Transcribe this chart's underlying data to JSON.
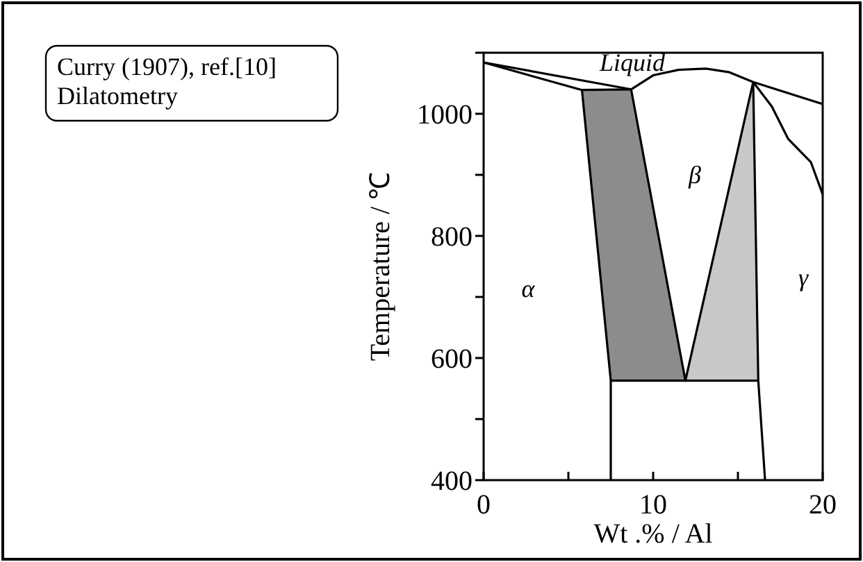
{
  "chart_data": {
    "type": "line",
    "xlabel": "Wt .% /  Al",
    "ylabel": "Temperature  / ℃",
    "xlim": [
      0,
      20
    ],
    "ylim": [
      400,
      1100
    ],
    "xticks": [
      0,
      {
        "value": 5,
        "label": null
      },
      10,
      {
        "value": 15,
        "label": null
      },
      20
    ],
    "yticks": [
      400,
      {
        "value": 500,
        "label": null
      },
      600,
      {
        "value": 700,
        "label": null
      },
      800,
      {
        "value": 900,
        "label": null
      },
      1000,
      {
        "value": 1100,
        "label": null
      }
    ],
    "grid": false,
    "marker": "none",
    "line_style": "solid",
    "series": [
      {
        "type": "area",
        "color": "#8c8c8c",
        "x": [
          5.8,
          8.7,
          11.9,
          7.5,
          5.8
        ],
        "values": [
          1039,
          1040,
          563,
          563,
          1039
        ]
      },
      {
        "type": "area",
        "color": "#c8c8c8",
        "x": [
          15.9,
          11.9,
          16.2,
          15.9
        ],
        "values": [
          1052,
          563,
          563,
          1052
        ]
      },
      {
        "color": "#000000",
        "x": [
          0,
          8.7,
          10,
          11.5,
          13.1,
          14.5,
          15.9,
          20
        ],
        "values": [
          1084,
          1040,
          1063,
          1072,
          1074,
          1068,
          1052,
          1016
        ]
      },
      {
        "color": "#000000",
        "x": [
          0,
          5.8,
          8.7
        ],
        "values": [
          1084,
          1039,
          1040
        ]
      },
      {
        "color": "#000000",
        "x": [
          5.8,
          7.5,
          7.5
        ],
        "values": [
          1039,
          563,
          400
        ]
      },
      {
        "color": "#000000",
        "x": [
          8.7,
          11.9,
          15.9
        ],
        "values": [
          1040,
          563,
          1052
        ]
      },
      {
        "color": "#000000",
        "x": [
          7.5,
          16.2
        ],
        "values": [
          563,
          563
        ]
      },
      {
        "color": "#000000",
        "x": [
          15.9,
          16.2,
          16.6
        ],
        "values": [
          1052,
          563,
          400
        ]
      },
      {
        "color": "#000000",
        "x": [
          15.9,
          17,
          17.96,
          19.3,
          20
        ],
        "values": [
          1052,
          1012,
          959,
          921,
          868
        ]
      }
    ],
    "annotations": [
      "Curry (1907), ref.[10]\nDilatometry",
      "Liquid",
      "α",
      "β",
      "γ"
    ]
  }
}
